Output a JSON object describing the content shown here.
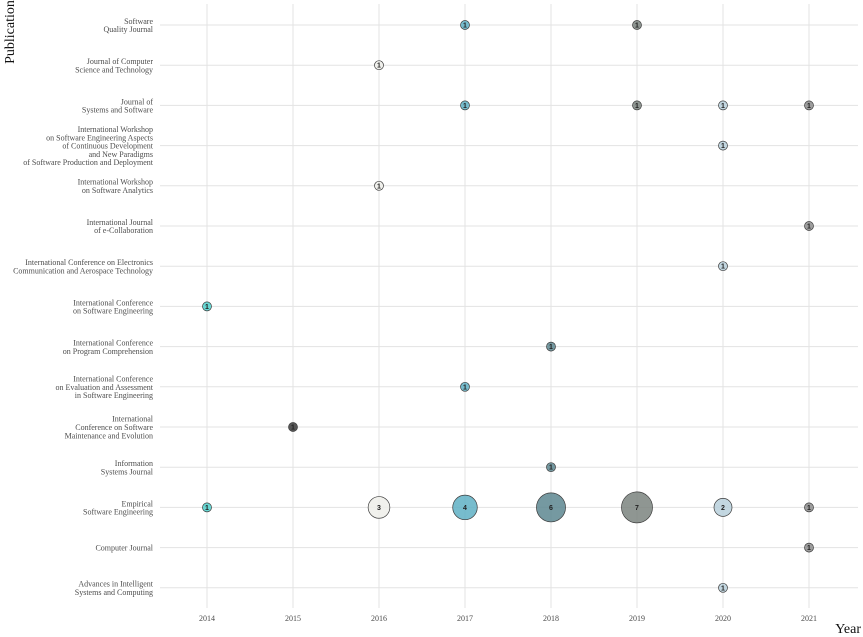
{
  "chart_data": {
    "type": "scatter",
    "subtype": "bubble",
    "xlabel": "Year",
    "ylabel": "Publication",
    "x": [
      2014,
      2015,
      2016,
      2017,
      2018,
      2019,
      2020,
      2021
    ],
    "categories": [
      "Software\nQuality Journal",
      "Journal of Computer\nScience and Technology",
      "Journal of\nSystems and Software",
      "International Workshop\non Software Engineering Aspects\nof Continuous Development\nand New Paradigms\nof Software Production and Deployment",
      "International Workshop\non Software Analytics",
      "International Journal\nof e-Collaboration",
      "International Conference on Electronics\nCommunication and Aerospace Technology",
      "International Conference\non Software Engineering",
      "International Conference\non Program Comprehension",
      "International Conference\non Evaluation and Assessment\nin Software Engineering",
      "International\nConference on Software\nMaintenance and Evolution",
      "Information\nSystems Journal",
      "Empirical\nSoftware Engineering",
      "Computer Journal",
      "Advances in Intelligent\nSystems and Computing"
    ],
    "year_colors": {
      "2014": "#4fd1cc",
      "2015": "#3a3a3a",
      "2016": "#eeeeea",
      "2017": "#5fb0c4",
      "2018": "#5d8790",
      "2019": "#7b847f",
      "2020": "#b9d0dc",
      "2021": "#8d8d8d"
    },
    "points": [
      {
        "pub": 0,
        "year": 2017,
        "count": 1
      },
      {
        "pub": 0,
        "year": 2019,
        "count": 1
      },
      {
        "pub": 1,
        "year": 2016,
        "count": 1
      },
      {
        "pub": 2,
        "year": 2017,
        "count": 1
      },
      {
        "pub": 2,
        "year": 2019,
        "count": 1
      },
      {
        "pub": 2,
        "year": 2020,
        "count": 1
      },
      {
        "pub": 2,
        "year": 2021,
        "count": 1
      },
      {
        "pub": 3,
        "year": 2020,
        "count": 1
      },
      {
        "pub": 4,
        "year": 2016,
        "count": 1
      },
      {
        "pub": 5,
        "year": 2021,
        "count": 1
      },
      {
        "pub": 6,
        "year": 2020,
        "count": 1
      },
      {
        "pub": 7,
        "year": 2014,
        "count": 1
      },
      {
        "pub": 8,
        "year": 2018,
        "count": 1
      },
      {
        "pub": 9,
        "year": 2017,
        "count": 1
      },
      {
        "pub": 10,
        "year": 2015,
        "count": 1
      },
      {
        "pub": 11,
        "year": 2018,
        "count": 1
      },
      {
        "pub": 12,
        "year": 2014,
        "count": 1
      },
      {
        "pub": 12,
        "year": 2016,
        "count": 3
      },
      {
        "pub": 12,
        "year": 2017,
        "count": 4
      },
      {
        "pub": 12,
        "year": 2018,
        "count": 6
      },
      {
        "pub": 12,
        "year": 2019,
        "count": 7
      },
      {
        "pub": 12,
        "year": 2020,
        "count": 2
      },
      {
        "pub": 12,
        "year": 2021,
        "count": 1
      },
      {
        "pub": 13,
        "year": 2021,
        "count": 1
      },
      {
        "pub": 14,
        "year": 2020,
        "count": 1
      }
    ],
    "grid": true,
    "legend": "none"
  }
}
